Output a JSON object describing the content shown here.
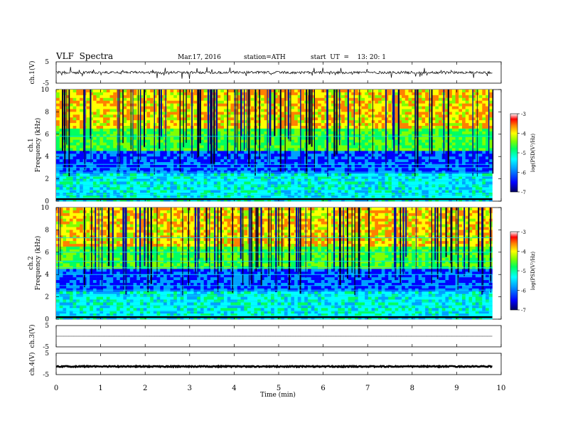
{
  "header": {
    "title": "VLF  Spectra",
    "date": "Mar.17, 2016",
    "station": "station=ATH",
    "start_ut": "start  UT  =    13: 20: 1"
  },
  "chart_data": [
    {
      "type": "line",
      "panel": "ch1-waveform",
      "ylabel": "ch.1(V)",
      "ylim": [
        -5,
        5
      ],
      "yticks": [
        "5",
        "0",
        "-5"
      ],
      "yticklabels": [
        "5",
        "-5"
      ],
      "description_values": {
        "baseline_V": 0,
        "noise_amplitude_V": 0.6,
        "spike_amplitude_V": 2.5
      }
    },
    {
      "type": "heatmap",
      "panel": "ch1-spectrogram",
      "ylabel": "ch.1\nFrequency (kHz)",
      "ylim": [
        0,
        10
      ],
      "yticks": [
        0,
        2,
        4,
        6,
        8,
        10
      ],
      "colorbar": {
        "label": "log(PSD(V²/Hz)",
        "range": [
          -7,
          -3
        ],
        "ticks": [
          "-3",
          "-4",
          "-5",
          "-6",
          "-7"
        ]
      },
      "bands_kHz": [
        0.3,
        0.6,
        1.0,
        1.4,
        1.8,
        2.2,
        2.6,
        3.0,
        3.3,
        5.8
      ]
    },
    {
      "type": "heatmap",
      "panel": "ch2-spectrogram",
      "ylabel": "ch.2\nFrequency (kHz)",
      "ylim": [
        0,
        10
      ],
      "yticks": [
        0,
        2,
        4,
        6,
        8,
        10
      ],
      "colorbar": {
        "label": "log(PSD(V²/Hz)",
        "range": [
          -7,
          -3
        ],
        "ticks": [
          "-3",
          "-4",
          "-5",
          "-6",
          "-7"
        ]
      },
      "bands_kHz": [
        0.3,
        0.7,
        1.2,
        1.6,
        2.1,
        2.6,
        3.0,
        4.0,
        4.6,
        5.2,
        6.0,
        7.3
      ]
    },
    {
      "type": "line",
      "panel": "ch3-waveform",
      "ylabel": "ch.3(V)",
      "ylim": [
        -5,
        5
      ],
      "yticklabels": [
        "5",
        "-5"
      ],
      "description_values": {
        "baseline_V": 0
      }
    },
    {
      "type": "line",
      "panel": "ch4-waveform",
      "ylabel": "ch.4(V)",
      "ylim": [
        -5,
        5
      ],
      "yticklabels": [
        "5",
        "-5"
      ],
      "description_values": {
        "baseline_V": -1.2,
        "noise_amplitude_V": 0.25
      }
    }
  ],
  "xaxis": {
    "label": "Time  (min)",
    "range": [
      0,
      10
    ],
    "ticks": [
      "0",
      "1",
      "2",
      "3",
      "4",
      "5",
      "6",
      "7",
      "8",
      "9",
      "10"
    ],
    "data_end_min": 9.8
  },
  "colors": {
    "axis": "#000000",
    "colormap": [
      "#000060",
      "#0000ff",
      "#00a0ff",
      "#00ffff",
      "#00ff60",
      "#80ff00",
      "#ffff00",
      "#ff8000",
      "#ff0000",
      "#ffffff"
    ]
  }
}
